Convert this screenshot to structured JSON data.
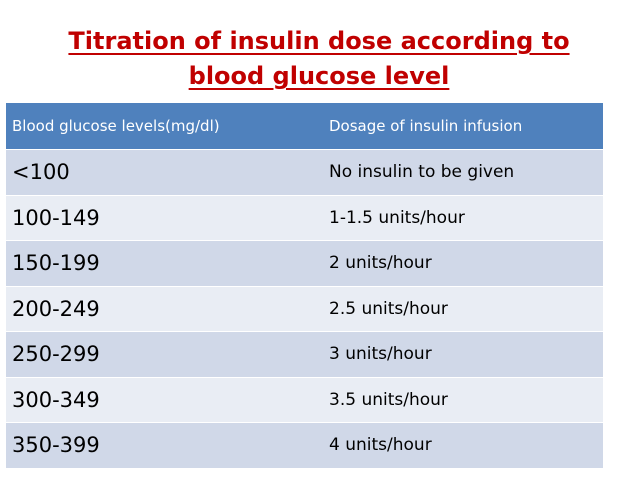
{
  "title": {
    "line1": "Titration of insulin dose according to",
    "line2": "blood glucose level"
  },
  "table": {
    "headers": [
      "Blood glucose levels(mg/dl)",
      "Dosage of insulin infusion"
    ],
    "rows": [
      [
        "<100",
        "No insulin to be given"
      ],
      [
        "100-149",
        "1-1.5 units/hour"
      ],
      [
        "150-199",
        "2 units/hour"
      ],
      [
        "200-249",
        "2.5 units/hour"
      ],
      [
        "250-299",
        "3 units/hour"
      ],
      [
        "300-349",
        "3.5 units/hour"
      ],
      [
        "350-399",
        "4 units/hour"
      ]
    ]
  },
  "colors": {
    "title": "#c00000",
    "header_bg": "#4f81bd",
    "row_odd": "#d0d8e8",
    "row_even": "#e9edf4"
  }
}
